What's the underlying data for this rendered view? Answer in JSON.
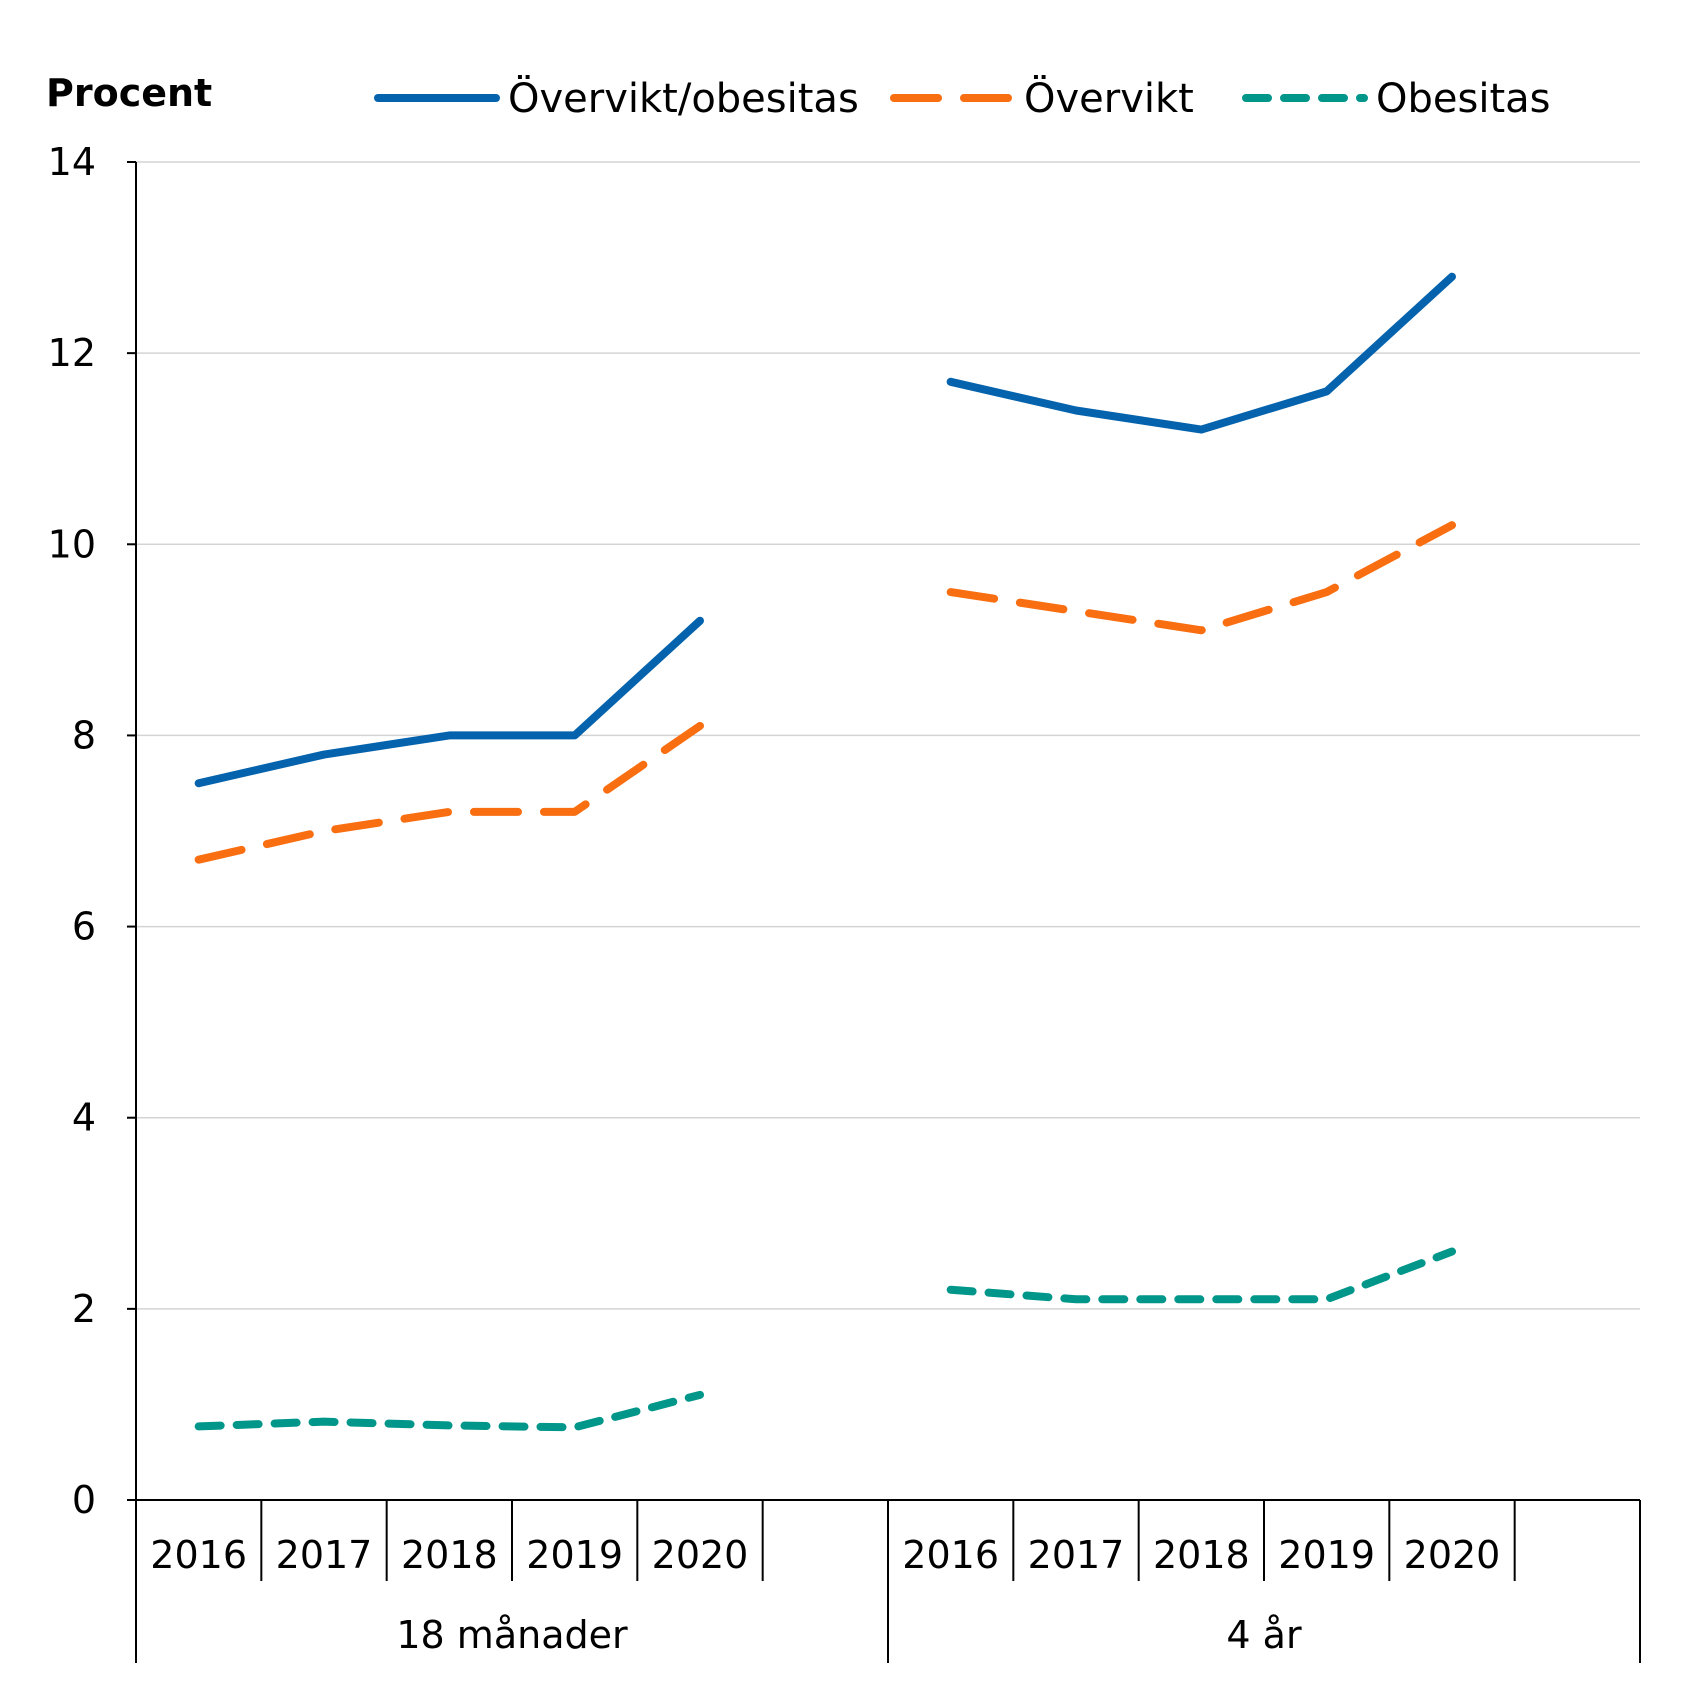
{
  "chart_data": {
    "type": "line",
    "ylabel": "Procent",
    "ylim": [
      0,
      14
    ],
    "yticks": [
      "0",
      "2",
      "4",
      "6",
      "8",
      "10",
      "12",
      "14"
    ],
    "grid": true,
    "legend_position": "top",
    "groups": [
      {
        "name": "18 månader",
        "categories": [
          "2016",
          "2017",
          "2018",
          "2019",
          "2020"
        ]
      },
      {
        "name": "4 år",
        "categories": [
          "2016",
          "2017",
          "2018",
          "2019",
          "2020"
        ]
      }
    ],
    "series": [
      {
        "name": "Övervikt/obesitas",
        "color": "#0563AD",
        "dash": "solid",
        "values": [
          [
            7.5,
            7.8,
            8.0,
            8.0,
            9.2
          ],
          [
            11.7,
            11.4,
            11.2,
            11.6,
            12.8
          ]
        ]
      },
      {
        "name": "Övervikt",
        "color": "#F86E11",
        "dash": "long",
        "values": [
          [
            6.7,
            7.0,
            7.2,
            7.2,
            8.1
          ],
          [
            9.5,
            9.3,
            9.1,
            9.5,
            10.2
          ]
        ]
      },
      {
        "name": "Obesitas",
        "color": "#00968A",
        "dash": "short",
        "values": [
          [
            0.77,
            0.82,
            0.78,
            0.76,
            1.1
          ],
          [
            2.2,
            2.1,
            2.1,
            2.1,
            2.6
          ]
        ]
      }
    ]
  }
}
